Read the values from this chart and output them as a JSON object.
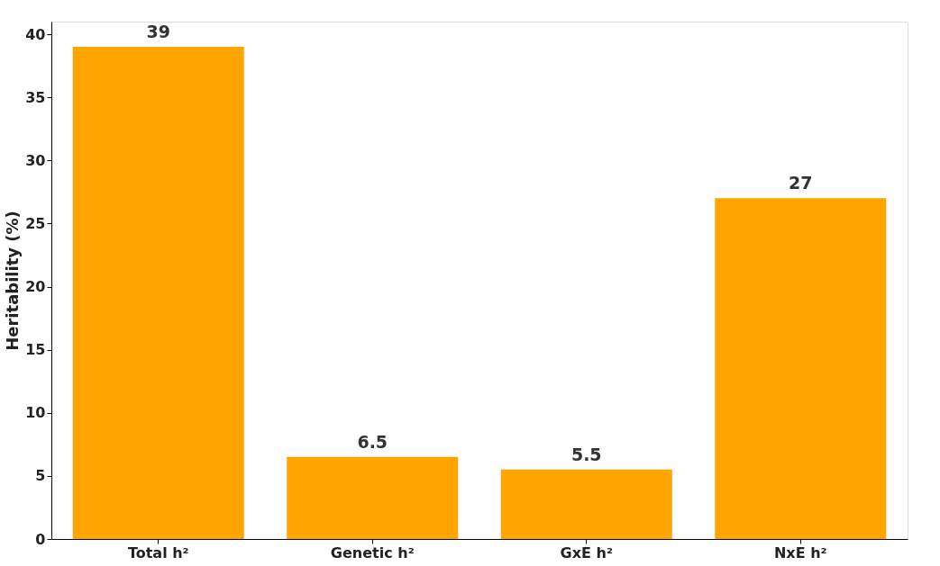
{
  "chart_data": {
    "type": "bar",
    "ylabel": "Heritability (%)",
    "categories": [
      "Total h²",
      "Genetic h²",
      "GxE h²",
      "NxE h²"
    ],
    "values": [
      39,
      6.5,
      5.5,
      27
    ],
    "color": "#ffa500",
    "ylim": [
      0,
      41
    ],
    "yticks": [
      0,
      5,
      10,
      15,
      20,
      25,
      30,
      35,
      40
    ],
    "grid": false,
    "data_labels": true
  }
}
